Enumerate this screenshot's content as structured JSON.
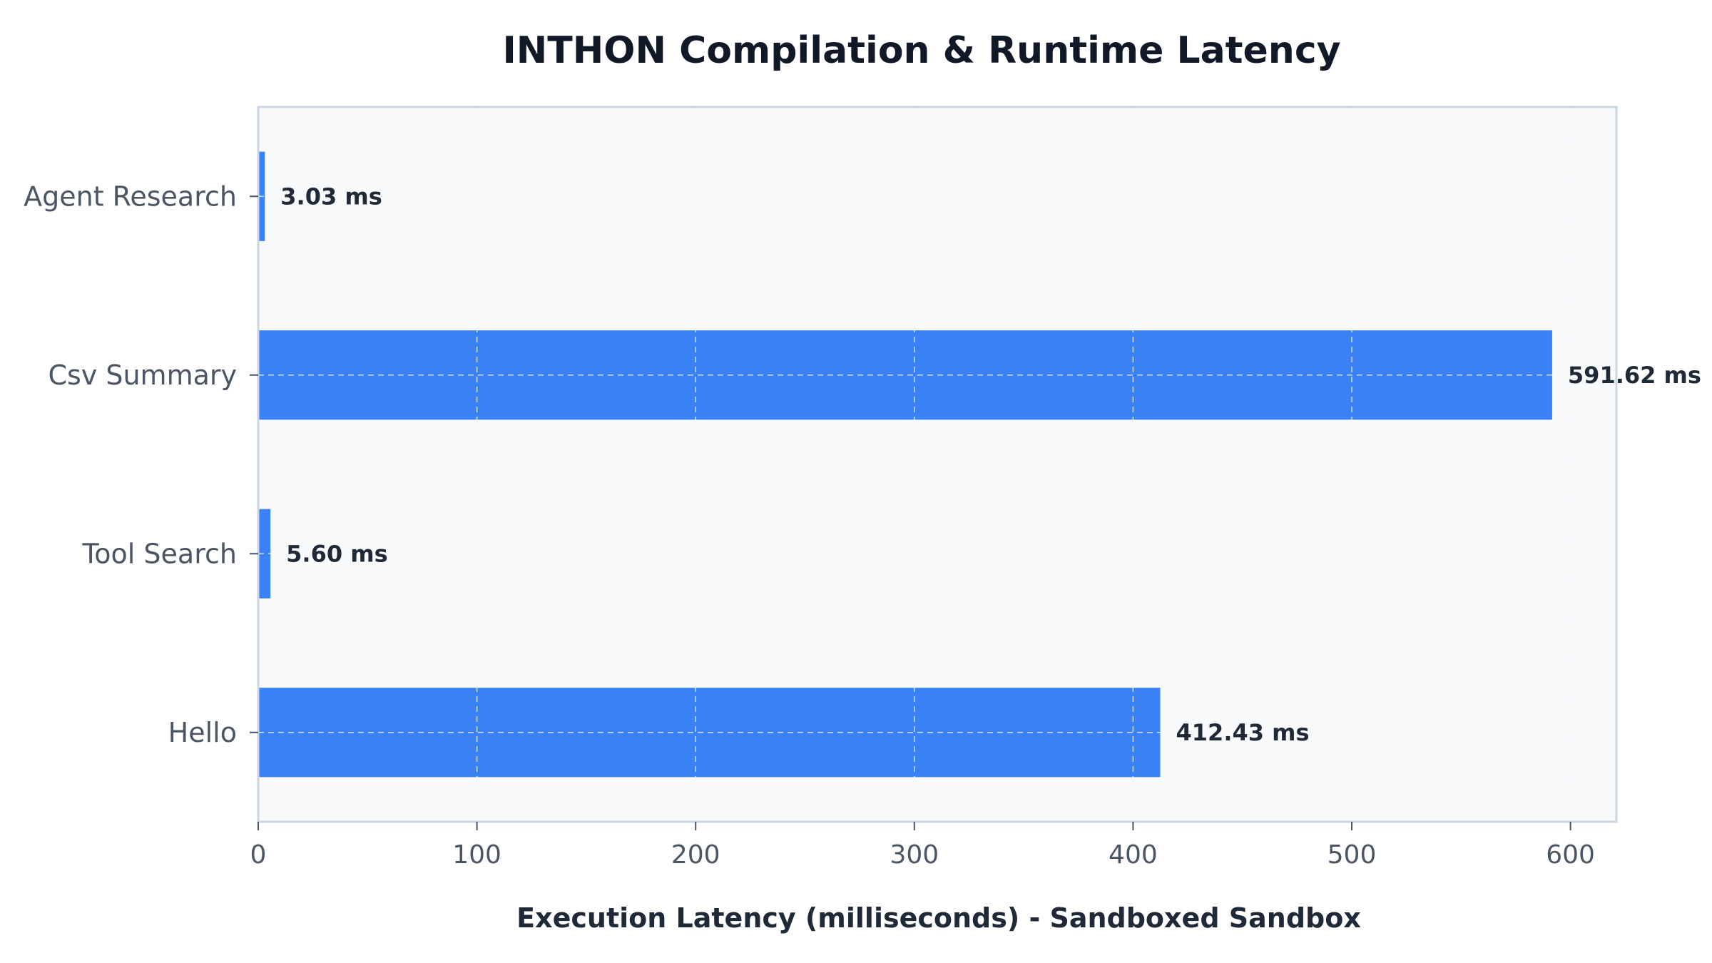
{
  "chart_data": {
    "type": "bar",
    "orientation": "horizontal",
    "title": "INTHON Compilation & Runtime Latency",
    "xlabel": "Execution Latency (milliseconds) - Sandboxed Sandbox",
    "ylabel": "",
    "categories": [
      "Agent Research",
      "Csv Summary",
      "Tool Search",
      "Hello"
    ],
    "values": [
      3.03,
      591.62,
      5.6,
      412.43
    ],
    "data_labels": [
      "3.03 ms",
      "591.62 ms",
      "5.60 ms",
      "412.43 ms"
    ],
    "xlim": [
      0,
      621
    ],
    "xticks": [
      0,
      100,
      200,
      300,
      400,
      500,
      600
    ],
    "grid": true,
    "legend": "none",
    "colors": {
      "bar": "#3b82f6",
      "plot_background": "#f8fafc",
      "frame": "#cbd5e1",
      "grid": "#e2e8f0"
    }
  }
}
